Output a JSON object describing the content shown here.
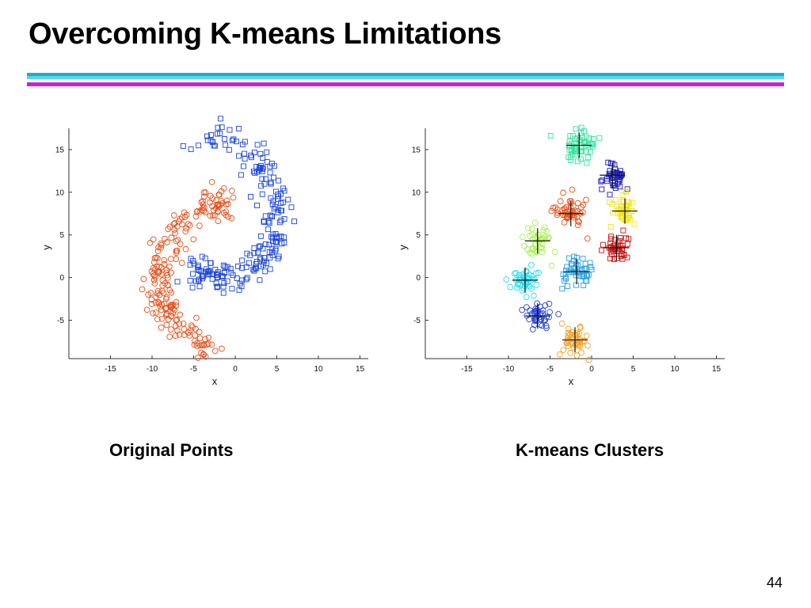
{
  "slide": {
    "title": "Overcoming K-means Limitations",
    "page_number": "44",
    "rule_colors": [
      "#1ab0c8",
      "#56d8ec",
      "#cc22cc"
    ]
  },
  "chart_data": [
    {
      "type": "scatter",
      "caption": "Original Points",
      "xlabel": "x",
      "ylabel": "y",
      "xlim": [
        -20,
        16
      ],
      "ylim": [
        -9.5,
        17.5
      ],
      "xticks": [
        -15,
        -10,
        -5,
        0,
        5,
        10,
        15
      ],
      "yticks": [
        -5,
        0,
        5,
        10,
        15
      ],
      "xticklabels": [
        "-15",
        "-10",
        "-5",
        "0",
        "5",
        "10",
        "15"
      ],
      "yticklabels": [
        "-5",
        "0",
        "5",
        "10",
        "15"
      ],
      "grid": false,
      "series": [
        {
          "marker": "circle",
          "color": "#e8501a",
          "centerline": [
            [
              -2,
              -8.5
            ],
            [
              -4,
              -7.5
            ],
            [
              -6.5,
              -6
            ],
            [
              -8.2,
              -4
            ],
            [
              -9,
              -2
            ],
            [
              -9.3,
              0
            ],
            [
              -9,
              2
            ],
            [
              -8,
              4
            ],
            [
              -6.5,
              6
            ],
            [
              -4.8,
              7.5
            ],
            [
              -3,
              8.5
            ],
            [
              -1.5,
              9
            ],
            [
              -0.2,
              9
            ]
          ],
          "spread": 1.3,
          "count": 220
        },
        {
          "marker": "square",
          "color": "#1a44dd",
          "centerline": [
            [
              -4,
              16.5
            ],
            [
              -1.5,
              16.5
            ],
            [
              1,
              15
            ],
            [
              3,
              13
            ],
            [
              4.5,
              10.5
            ],
            [
              5,
              8
            ],
            [
              4.8,
              5.5
            ],
            [
              4,
              3
            ],
            [
              3,
              1.5
            ],
            [
              1,
              0.5
            ],
            [
              -1.5,
              0
            ],
            [
              -3.5,
              0.5
            ],
            [
              -4.5,
              0
            ]
          ],
          "spread": 1.3,
          "count": 220
        }
      ]
    },
    {
      "type": "scatter",
      "caption": "K-means Clusters",
      "xlabel": "x",
      "ylabel": "y",
      "xlim": [
        -20,
        16
      ],
      "ylim": [
        -9.5,
        17.5
      ],
      "xticks": [
        -15,
        -10,
        -5,
        0,
        5,
        10,
        15
      ],
      "yticks": [
        -5,
        0,
        5,
        10,
        15
      ],
      "xticklabels": [
        "-15",
        "-10",
        "-5",
        "0",
        "5",
        "10",
        "15"
      ],
      "yticklabels": [
        "-5",
        "0",
        "5",
        "10",
        "15"
      ],
      "grid": false,
      "clusters": [
        {
          "color": "#33e39c",
          "marker": "square",
          "center": [
            -1.5,
            15.5
          ],
          "spread": 1.2,
          "count": 55
        },
        {
          "color": "#1515b4",
          "marker": "square",
          "center": [
            2.5,
            12
          ],
          "spread": 1.0,
          "count": 40
        },
        {
          "color": "#f0e418",
          "marker": "square",
          "center": [
            4,
            7.8
          ],
          "spread": 1.0,
          "count": 45
        },
        {
          "color": "#cc1414",
          "marker": "square",
          "center": [
            3,
            3.5
          ],
          "spread": 1.0,
          "count": 45
        },
        {
          "color": "#2aa0e6",
          "marker": "square",
          "center": [
            -1.8,
            0.7
          ],
          "spread": 1.3,
          "count": 50
        },
        {
          "color": "#e8501a",
          "marker": "circle",
          "center": [
            -2.5,
            7.5
          ],
          "spread": 1.3,
          "count": 50
        },
        {
          "color": "#a6f050",
          "marker": "circle",
          "center": [
            -6.5,
            4.3
          ],
          "spread": 1.1,
          "count": 40
        },
        {
          "color": "#22dcf2",
          "marker": "circle",
          "center": [
            -8,
            -0.3
          ],
          "spread": 1.0,
          "count": 45
        },
        {
          "color": "#2844d8",
          "marker": "circle",
          "center": [
            -6.5,
            -4.5
          ],
          "spread": 1.0,
          "count": 45
        },
        {
          "color": "#f6a020",
          "marker": "circle",
          "center": [
            -2,
            -7.3
          ],
          "spread": 1.0,
          "count": 45
        }
      ]
    }
  ]
}
